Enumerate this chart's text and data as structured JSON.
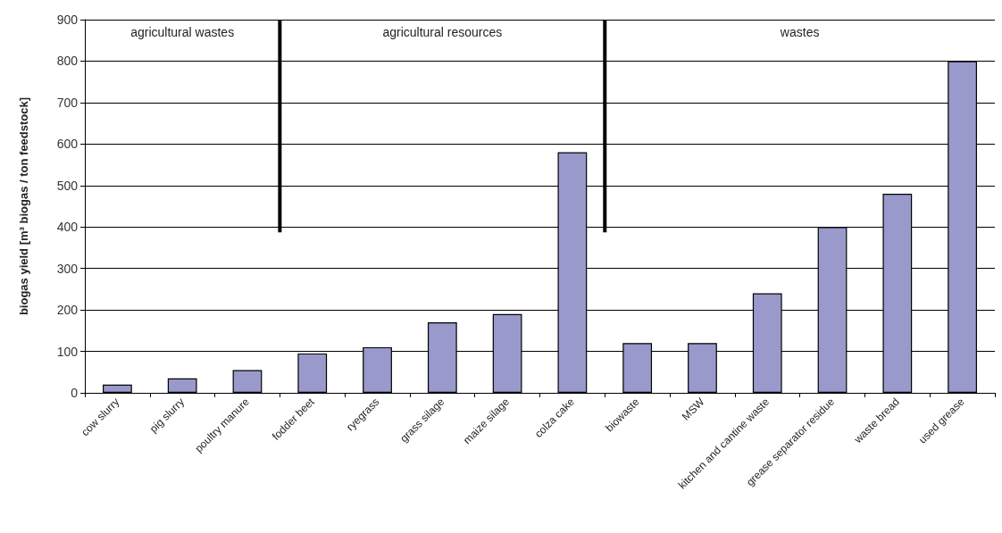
{
  "chart_data": {
    "type": "bar",
    "ylabel": "biogas yield [m³ biogas / ton feedstock]",
    "categories": [
      "cow slurry",
      "pig slurry",
      "poultry manure",
      "fodder beet",
      "ryegrass",
      "grass silage",
      "maize silage",
      "colza cake",
      "biowaste",
      "MSW",
      "kitchen and cantine waste",
      "grease separator residue",
      "waste bread",
      "used grease"
    ],
    "values": [
      20,
      35,
      55,
      95,
      110,
      170,
      190,
      580,
      120,
      120,
      240,
      400,
      480,
      800
    ],
    "color": "#9999cc",
    "ylim": [
      0,
      900
    ],
    "yticks": [
      0,
      100,
      200,
      300,
      400,
      500,
      600,
      700,
      800,
      900
    ],
    "grid": "y",
    "annotations": [
      "agricultural wastes",
      "agricultural resources",
      "wastes"
    ]
  }
}
